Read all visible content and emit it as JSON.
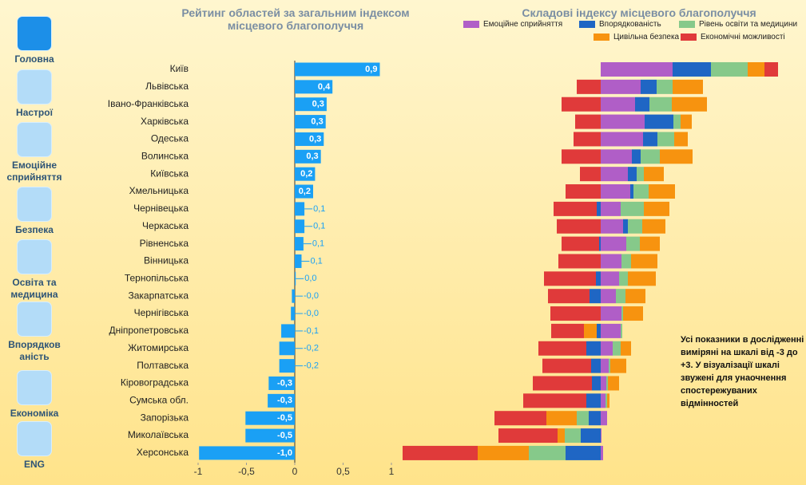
{
  "nav": [
    "Головна",
    "Настрої",
    "Емоційне сприйняття",
    "Безпека",
    "Освіта та медицина",
    "Впорядкованість",
    "Економіка",
    "ENG"
  ],
  "chart_data": [
    {
      "type": "hbar",
      "title": "Рейтинг областей за загальним індексом місцевого благополуччя",
      "categories": [
        "Київ",
        "Львівська",
        "Івано-Франківська",
        "Харківська",
        "Одеська",
        "Волинська",
        "Київська",
        "Хмельницька",
        "Чернівецька",
        "Черкаська",
        "Рівненська",
        "Вінницька",
        "Тернопільська",
        "Закарпатська",
        "Чернігівська",
        "Дніпропетровська",
        "Житомирська",
        "Полтавська",
        "Кіровоградська",
        "Сумська обл.",
        "Запорізька",
        "Миколаївська",
        "Херсонська"
      ],
      "values": [
        0.88,
        0.39,
        0.33,
        0.32,
        0.3,
        0.27,
        0.21,
        0.19,
        0.1,
        0.1,
        0.09,
        0.07,
        0.01,
        -0.03,
        -0.04,
        -0.14,
        -0.16,
        -0.16,
        -0.27,
        -0.28,
        -0.51,
        -0.51,
        -0.99
      ],
      "value_labels": [
        "0,9",
        "0,4",
        "0,3",
        "0,3",
        "0,3",
        "0,3",
        "0,2",
        "0,2",
        "0,1",
        "0,1",
        "0,1",
        "0,1",
        "0,0",
        "-0,0",
        "-0,0",
        "-0,1",
        "-0,2",
        "-0,2",
        "-0,3",
        "-0,3",
        "-0,5",
        "-0,5",
        "-1,0"
      ],
      "color": "#1aa0f5",
      "xlim": [
        -1,
        1
      ],
      "xticks": [
        -1,
        {
          "value": -0.5,
          "label": "-0,5"
        },
        0,
        {
          "value": 0.5,
          "label": "0,5"
        },
        1
      ]
    },
    {
      "type": "diverging-stacked-hbar",
      "title": "Складові індексу місцевого благополуччя",
      "xlim": [
        -2.5,
        2.5
      ],
      "series": [
        {
          "name": "Емоційне сприйняття",
          "color": "#b05ec7",
          "values": [
            0.9,
            0.5,
            0.43,
            0.55,
            0.53,
            0.39,
            0.34,
            0.37,
            0.25,
            0.28,
            0.32,
            0.26,
            0.23,
            0.19,
            0.26,
            0.25,
            0.15,
            0.1,
            0.07,
            0.06,
            0.08,
            0.01,
            0.03
          ]
        },
        {
          "name": "Впорядкованість",
          "color": "#1f66c4",
          "values": [
            0.48,
            0.2,
            0.18,
            0.36,
            0.18,
            0.11,
            0.11,
            0.04,
            -0.05,
            0.06,
            -0.02,
            0,
            -0.06,
            -0.14,
            0,
            -0.05,
            -0.18,
            -0.12,
            -0.11,
            -0.18,
            -0.15,
            -0.25,
            -0.44
          ]
        },
        {
          "name": "Рівень освіти та медицини",
          "color": "#86c98a",
          "values": [
            0.46,
            0.2,
            0.28,
            0.09,
            0.21,
            0.24,
            0.09,
            0.19,
            0.29,
            0.18,
            0.17,
            0.12,
            0.11,
            0.12,
            0.02,
            0.02,
            0.1,
            0.02,
            0.02,
            0.02,
            -0.15,
            -0.2,
            -0.46
          ]
        },
        {
          "name": "Цивільна безпека",
          "color": "#f7930f",
          "values": [
            0.21,
            0.38,
            0.44,
            0.14,
            0.17,
            0.41,
            0.25,
            0.33,
            0.32,
            0.29,
            0.25,
            0.33,
            0.35,
            0.25,
            0.25,
            -0.16,
            0.13,
            0.2,
            0.14,
            0.03,
            -0.38,
            -0.09,
            -0.64
          ]
        },
        {
          "name": "Економічні можливості",
          "color": "#e03a3a",
          "values": [
            0.17,
            -0.3,
            -0.49,
            -0.32,
            -0.34,
            -0.49,
            -0.26,
            -0.44,
            -0.54,
            -0.55,
            -0.47,
            -0.53,
            -0.65,
            -0.52,
            -0.63,
            -0.41,
            -0.6,
            -0.61,
            -0.74,
            -0.79,
            -0.65,
            -0.74,
            -0.94
          ]
        }
      ],
      "note": "Усі показники в дослідженні виміряні на шкалі від -3 до +3. У візуалізації шкалі звужені для унаочнення спостережуваних відмінностей"
    }
  ]
}
